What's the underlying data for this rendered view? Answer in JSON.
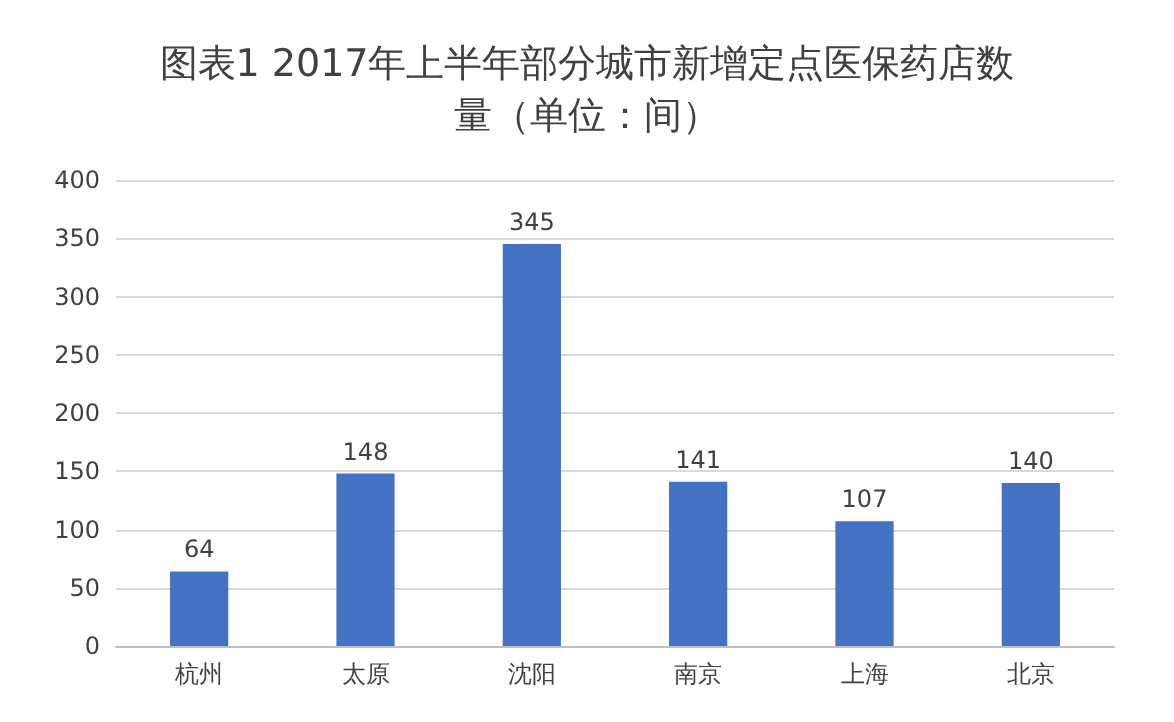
{
  "chart_data": {
    "type": "bar",
    "title": "图表1 2017年上半年部分城市新增定点医保药店数量（单位：间）",
    "categories": [
      "杭州",
      "太原",
      "沈阳",
      "南京",
      "上海",
      "北京"
    ],
    "values": [
      64,
      148,
      345,
      141,
      107,
      140
    ],
    "color": "#4472c4",
    "ylim": [
      0,
      400
    ],
    "yticks": [
      0,
      50,
      100,
      150,
      200,
      250,
      300,
      350,
      400
    ],
    "grid": "y",
    "data_labels": true
  }
}
